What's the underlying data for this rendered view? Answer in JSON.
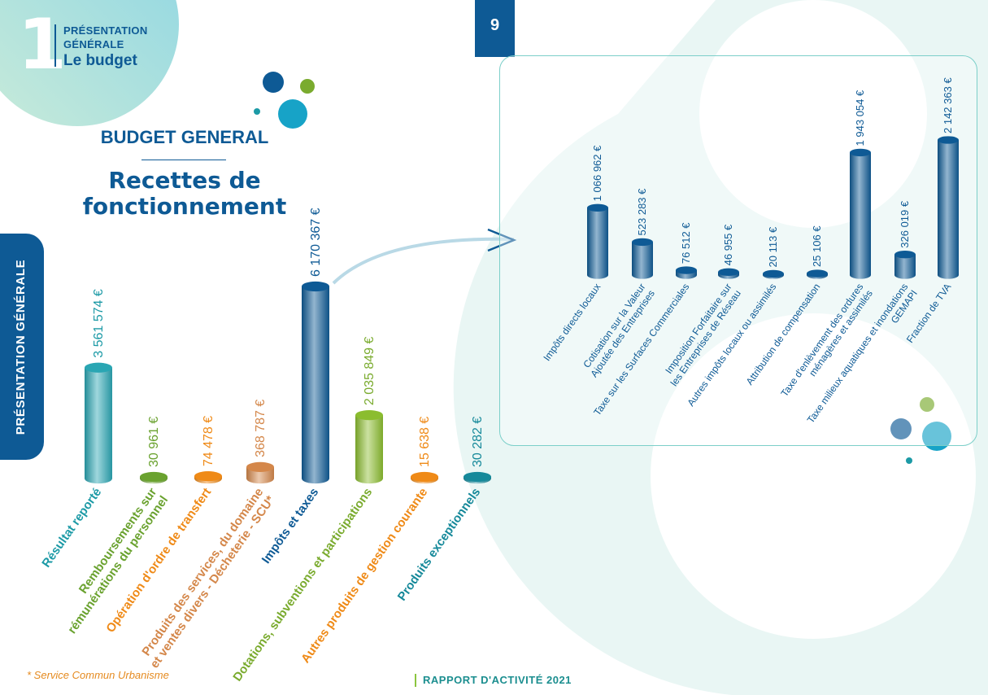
{
  "header": {
    "section_number": "1",
    "section_line1": "PRÉSENTATION",
    "section_line2": "GÉNÉRALE",
    "section_subtitle": "Le budget",
    "page_number": "9"
  },
  "side_tab": {
    "label": "PRÉSENTATION GÉNÉRALE"
  },
  "titles": {
    "budget": "BUDGET GENERAL",
    "recettes_line1": "Recettes de",
    "recettes_line2": "fonctionnement"
  },
  "footnote": "* Service Commun Urbanisme",
  "footer": "RAPPORT D'ACTIVITÉ 2021",
  "colors": {
    "navy": "#0e5a95",
    "teal": "#1c9aa6",
    "green": "#7aab2e",
    "orange": "#ef8a17",
    "brown": "#d4874a",
    "cyan": "#17a3c7"
  },
  "chart_data": [
    {
      "type": "bar",
      "title": "Recettes de fonctionnement",
      "categories": [
        "Résultat reporté",
        "Remboursements sur rémunérations du personnel",
        "Opération d'ordre de transfert",
        "Produits des services, du domaine et ventes divers - Décheterie - SCU*",
        "Impôts et taxes",
        "Dotations, subventions et participations",
        "Autres produits de gestion courante",
        "Produits exceptionnels"
      ],
      "label_lines": [
        [
          "Résultat reporté"
        ],
        [
          "Remboursements sur",
          "rémunérations du personnel"
        ],
        [
          "Opération d'ordre de transfert"
        ],
        [
          "Produits des services, du domaine",
          "et ventes divers - Décheterie - SCU*"
        ],
        [
          "Impôts et taxes"
        ],
        [
          "Dotations, subventions et participations"
        ],
        [
          "Autres produits de gestion courante"
        ],
        [
          "Produits exceptionnels"
        ]
      ],
      "values": [
        3561574,
        30961,
        74478,
        368787,
        6170367,
        2035849,
        15638,
        30282
      ],
      "value_labels": [
        "3 561 574 €",
        "30 961 €",
        "74 478 €",
        "368 787 €",
        "6 170 367 €",
        "2 035 849 €",
        "15 638 €",
        "30 282 €"
      ],
      "bar_colors": [
        "#2aa6b3",
        "#6aa22f",
        "#ef8a17",
        "#d4874a",
        "#0e5a95",
        "#8bbd2f",
        "#ef8a17",
        "#16899a"
      ],
      "label_colors": [
        "#1c9aa6",
        "#6aa22f",
        "#ef8a17",
        "#d4874a",
        "#0e5a95",
        "#7aab2e",
        "#ef8a17",
        "#16899a"
      ]
    },
    {
      "type": "bar",
      "title": "",
      "categories": [
        "Impôts directs locaux",
        "Cotisation sur la Valeur Ajoutée des Entreprises",
        "Taxe sur les Surfaces Commerciales",
        "Imposition Forfaitaire sur les Entreprises de Réseau",
        "Autres impôts locaux ou assimilés",
        "Attribution de compensation",
        "Taxe d'enlèvement des ordures ménagères et assimilés",
        "Taxe milieux aquatiques et inondations GEMAPI",
        "Fraction de TVA"
      ],
      "label_lines": [
        [
          "Impôts directs locaux"
        ],
        [
          "Cotisation sur la Valeur",
          "Ajoutée des Entreprises"
        ],
        [
          "Taxe sur les Surfaces Commerciales"
        ],
        [
          "Imposition Forfaitaire sur",
          "les Entreprises de Réseau"
        ],
        [
          "Autres impôts locaux ou assimilés"
        ],
        [
          "Attribution de compensation"
        ],
        [
          "Taxe d'enlèvement des ordures",
          "ménagères et assimilés"
        ],
        [
          "Taxe milieux aquatiques et inondations",
          "GEMAPI"
        ],
        [
          "Fraction de TVA"
        ]
      ],
      "values": [
        1066962,
        523283,
        76512,
        46955,
        20113,
        25106,
        1943054,
        326019,
        2142363
      ],
      "value_labels": [
        "1 066 962 €",
        "523 283 €",
        "76 512 €",
        "46 955 €",
        "20 113 €",
        "25 106 €",
        "1 943 054 €",
        "326 019 €",
        "2 142 363 €"
      ],
      "bar_color": "#0e5a95"
    }
  ]
}
